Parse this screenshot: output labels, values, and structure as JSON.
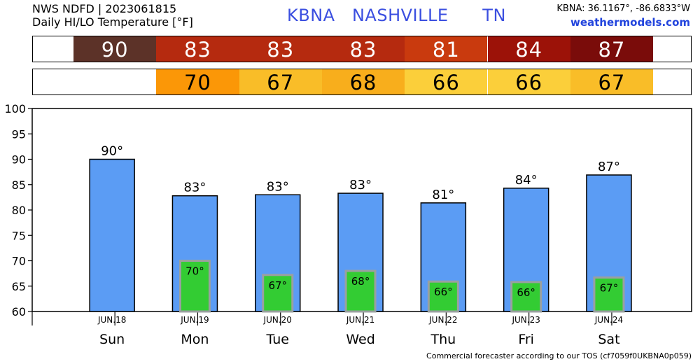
{
  "header": {
    "line1": "NWS NDFD | 2023061815",
    "line2": "Daily HI/LO Temperature [°F]",
    "station": "KBNA   NASHVILLE      TN",
    "coords": "KBNA: 36.1167°, -86.6833°W",
    "site": "weathermodels.com"
  },
  "footer": "Commercial forecaster according to our TOS (cf7059f0UKBNA0p059)",
  "strips": {
    "hi": [
      {
        "value": "90",
        "color": "#5c3228"
      },
      {
        "value": "83",
        "color": "#b52a0f"
      },
      {
        "value": "83",
        "color": "#b52a0f"
      },
      {
        "value": "83",
        "color": "#b52a0f"
      },
      {
        "value": "81",
        "color": "#c93a0e"
      },
      {
        "value": "84",
        "color": "#9c1208"
      },
      {
        "value": "87",
        "color": "#7a0c0a"
      }
    ],
    "lo": [
      {
        "value": "",
        "color": "#ffffff"
      },
      {
        "value": "70",
        "color": "#fb9707"
      },
      {
        "value": "67",
        "color": "#f9bd28"
      },
      {
        "value": "68",
        "color": "#f8ae1c"
      },
      {
        "value": "66",
        "color": "#fbcf3a"
      },
      {
        "value": "66",
        "color": "#fbcf3a"
      },
      {
        "value": "67",
        "color": "#f9bd28"
      }
    ]
  },
  "chart_data": {
    "type": "bar",
    "categories": [
      "Sun",
      "Mon",
      "Tue",
      "Wed",
      "Thu",
      "Fri",
      "Sat"
    ],
    "dates": [
      "JUN.18",
      "JUN.19",
      "JUN.20",
      "JUN.21",
      "JUN.22",
      "JUN.23",
      "JUN.24"
    ],
    "series": [
      {
        "values": [
          90,
          82.8,
          83,
          83.3,
          81.4,
          84.3,
          86.9
        ],
        "labels": [
          "90°",
          "83°",
          "83°",
          "83°",
          "81°",
          "84°",
          "87°"
        ],
        "color": "#5b9cf4"
      },
      {
        "values": [
          null,
          70,
          67.2,
          68,
          65.9,
          65.8,
          66.7
        ],
        "labels": [
          "",
          "70°",
          "67°",
          "68°",
          "66°",
          "66°",
          "67°"
        ],
        "color": "#33cc33"
      }
    ],
    "ylim": [
      60,
      100
    ],
    "yticks": [
      "60",
      "65",
      "70",
      "75",
      "80",
      "85",
      "90",
      "95",
      "100"
    ],
    "grid": false
  }
}
